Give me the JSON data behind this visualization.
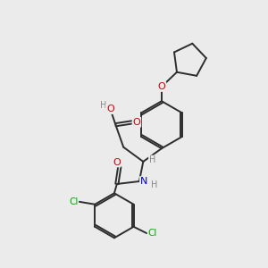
{
  "bg_color": "#ebebeb",
  "bond_color": "#2d2d2d",
  "atom_colors": {
    "O": "#cc0000",
    "N": "#0000cc",
    "Cl": "#00aa00",
    "C": "#2d2d2d",
    "H": "#888888"
  },
  "bond_width": 1.4,
  "dbo": 0.06
}
